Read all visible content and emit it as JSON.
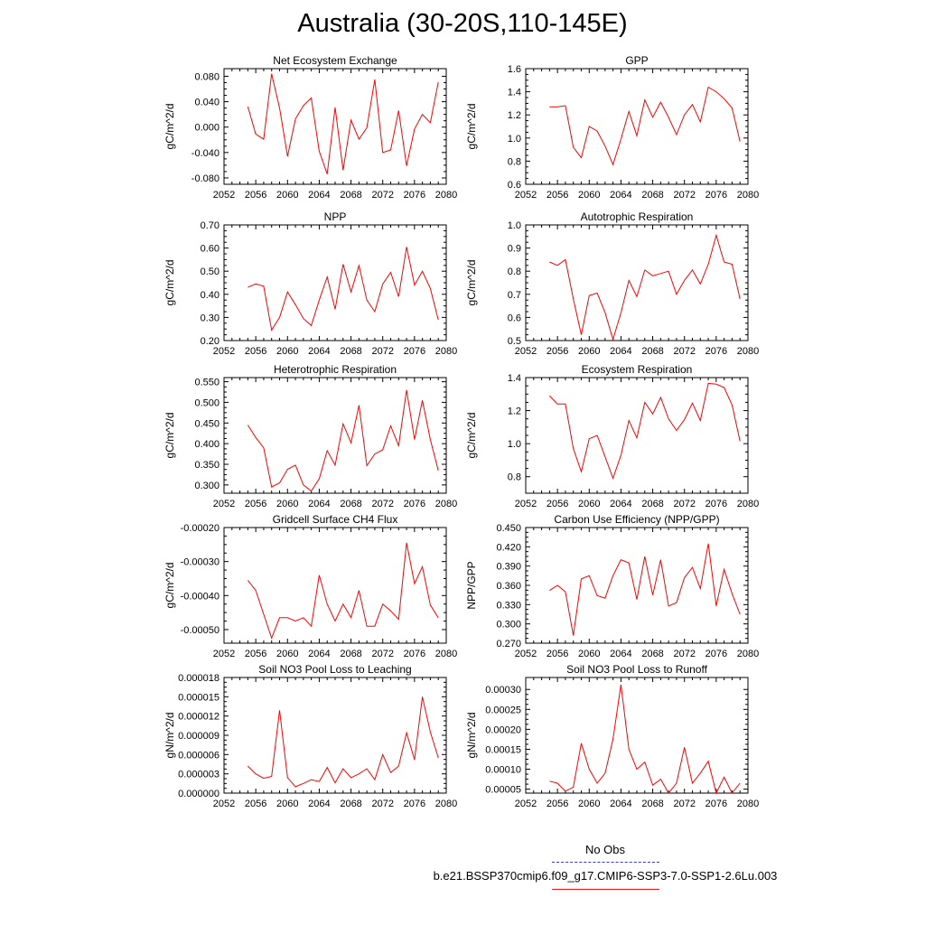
{
  "title": "Australia (30-20S,110-145E)",
  "colors": {
    "model": "#ff0000",
    "obs": "#3a3ad0",
    "axis": "#000000"
  },
  "legend": {
    "obs_label": "No Obs",
    "model_label": "b.e21.BSSP370cmip6.f09_g17.CMIP6-SSP3-7.0-SSP1-2.6Lu.003"
  },
  "chart_data": [
    {
      "type": "line",
      "title": "Net Ecosystem Exchange",
      "ylabel": "gC/m^2/d",
      "xlim": [
        2052,
        2080
      ],
      "xticks": [
        2052,
        2056,
        2060,
        2064,
        2068,
        2072,
        2076,
        2080
      ],
      "ylim": [
        -0.09,
        0.092
      ],
      "yticks": [
        -0.08,
        -0.04,
        0.0,
        0.04,
        0.08
      ],
      "ytick_labels": [
        "-0.080",
        "-0.040",
        "0.000",
        "0.040",
        "0.080"
      ],
      "x": [
        2055,
        2056,
        2057,
        2058,
        2059,
        2060,
        2061,
        2062,
        2063,
        2064,
        2065,
        2066,
        2067,
        2068,
        2069,
        2070,
        2071,
        2072,
        2073,
        2074,
        2075,
        2076,
        2077,
        2078,
        2079
      ],
      "series": [
        {
          "name": "b.e21.BSSP370cmip6.f09_g17.CMIP6-SSP3-7.0-SSP1-2.6Lu.003",
          "values": [
            0.032,
            -0.011,
            -0.019,
            0.084,
            0.03,
            -0.046,
            0.013,
            0.034,
            0.046,
            -0.038,
            -0.074,
            0.031,
            -0.068,
            0.011,
            -0.019,
            -0.001,
            0.075,
            -0.04,
            -0.036,
            0.026,
            -0.061,
            -0.003,
            0.02,
            0.007,
            0.071
          ]
        }
      ]
    },
    {
      "type": "line",
      "title": "GPP",
      "ylabel": "gC/m^2/d",
      "xlim": [
        2052,
        2080
      ],
      "xticks": [
        2052,
        2056,
        2060,
        2064,
        2068,
        2072,
        2076,
        2080
      ],
      "ylim": [
        0.6,
        1.6
      ],
      "yticks": [
        0.6,
        0.8,
        1.0,
        1.2,
        1.4,
        1.6
      ],
      "ytick_labels": [
        "0.6",
        "0.8",
        "1.0",
        "1.2",
        "1.4",
        "1.6"
      ],
      "x": [
        2055,
        2056,
        2057,
        2058,
        2059,
        2060,
        2061,
        2062,
        2063,
        2064,
        2065,
        2066,
        2067,
        2068,
        2069,
        2070,
        2071,
        2072,
        2073,
        2074,
        2075,
        2076,
        2077,
        2078,
        2079
      ],
      "series": [
        {
          "name": "b.e21.BSSP370cmip6.f09_g17.CMIP6-SSP3-7.0-SSP1-2.6Lu.003",
          "values": [
            1.27,
            1.27,
            1.28,
            0.92,
            0.83,
            1.1,
            1.06,
            0.93,
            0.77,
            0.99,
            1.23,
            1.02,
            1.33,
            1.18,
            1.31,
            1.18,
            1.03,
            1.2,
            1.29,
            1.14,
            1.44,
            1.4,
            1.34,
            1.26,
            0.97
          ]
        }
      ]
    },
    {
      "type": "line",
      "title": "NPP",
      "ylabel": "gC/m^2/d",
      "xlim": [
        2052,
        2080
      ],
      "xticks": [
        2052,
        2056,
        2060,
        2064,
        2068,
        2072,
        2076,
        2080
      ],
      "ylim": [
        0.2,
        0.7
      ],
      "yticks": [
        0.2,
        0.3,
        0.4,
        0.5,
        0.6,
        0.7
      ],
      "ytick_labels": [
        "0.20",
        "0.30",
        "0.40",
        "0.50",
        "0.60",
        "0.70"
      ],
      "x": [
        2055,
        2056,
        2057,
        2058,
        2059,
        2060,
        2061,
        2062,
        2063,
        2064,
        2065,
        2066,
        2067,
        2068,
        2069,
        2070,
        2071,
        2072,
        2073,
        2074,
        2075,
        2076,
        2077,
        2078,
        2079
      ],
      "series": [
        {
          "name": "b.e21.BSSP370cmip6.f09_g17.CMIP6-SSP3-7.0-SSP1-2.6Lu.003",
          "values": [
            0.43,
            0.445,
            0.435,
            0.245,
            0.3,
            0.41,
            0.355,
            0.295,
            0.265,
            0.375,
            0.475,
            0.335,
            0.53,
            0.41,
            0.525,
            0.375,
            0.325,
            0.445,
            0.495,
            0.39,
            0.605,
            0.44,
            0.5,
            0.425,
            0.29
          ]
        }
      ]
    },
    {
      "type": "line",
      "title": "Autotrophic Respiration",
      "ylabel": "gC/m^2/d",
      "xlim": [
        2052,
        2080
      ],
      "xticks": [
        2052,
        2056,
        2060,
        2064,
        2068,
        2072,
        2076,
        2080
      ],
      "ylim": [
        0.5,
        1.0
      ],
      "yticks": [
        0.5,
        0.6,
        0.7,
        0.8,
        0.9,
        1.0
      ],
      "ytick_labels": [
        "0.5",
        "0.6",
        "0.7",
        "0.8",
        "0.9",
        "1.0"
      ],
      "x": [
        2055,
        2056,
        2057,
        2058,
        2059,
        2060,
        2061,
        2062,
        2063,
        2064,
        2065,
        2066,
        2067,
        2068,
        2069,
        2070,
        2071,
        2072,
        2073,
        2074,
        2075,
        2076,
        2077,
        2078,
        2079
      ],
      "series": [
        {
          "name": "b.e21.BSSP370cmip6.f09_g17.CMIP6-SSP3-7.0-SSP1-2.6Lu.003",
          "values": [
            0.84,
            0.825,
            0.85,
            0.68,
            0.525,
            0.695,
            0.705,
            0.62,
            0.505,
            0.62,
            0.76,
            0.69,
            0.805,
            0.78,
            0.79,
            0.8,
            0.7,
            0.76,
            0.805,
            0.745,
            0.83,
            0.955,
            0.84,
            0.83,
            0.68
          ]
        }
      ]
    },
    {
      "type": "line",
      "title": "Heterotrophic Respiration",
      "ylabel": "gC/m^2/d",
      "xlim": [
        2052,
        2080
      ],
      "xticks": [
        2052,
        2056,
        2060,
        2064,
        2068,
        2072,
        2076,
        2080
      ],
      "ylim": [
        0.28,
        0.56
      ],
      "yticks": [
        0.3,
        0.35,
        0.4,
        0.45,
        0.5,
        0.55
      ],
      "ytick_labels": [
        "0.300",
        "0.350",
        "0.400",
        "0.450",
        "0.500",
        "0.550"
      ],
      "x": [
        2055,
        2056,
        2057,
        2058,
        2059,
        2060,
        2061,
        2062,
        2063,
        2064,
        2065,
        2066,
        2067,
        2068,
        2069,
        2070,
        2071,
        2072,
        2073,
        2074,
        2075,
        2076,
        2077,
        2078,
        2079
      ],
      "series": [
        {
          "name": "b.e21.BSSP370cmip6.f09_g17.CMIP6-SSP3-7.0-SSP1-2.6Lu.003",
          "values": [
            0.445,
            0.415,
            0.39,
            0.295,
            0.305,
            0.338,
            0.348,
            0.3,
            0.285,
            0.315,
            0.383,
            0.348,
            0.448,
            0.402,
            0.493,
            0.347,
            0.375,
            0.385,
            0.443,
            0.395,
            0.53,
            0.41,
            0.505,
            0.41,
            0.335
          ]
        }
      ]
    },
    {
      "type": "line",
      "title": "Ecosystem Respiration",
      "ylabel": "gC/m^2/d",
      "xlim": [
        2052,
        2080
      ],
      "xticks": [
        2052,
        2056,
        2060,
        2064,
        2068,
        2072,
        2076,
        2080
      ],
      "ylim": [
        0.7,
        1.4
      ],
      "yticks": [
        0.8,
        1.0,
        1.2,
        1.4
      ],
      "ytick_labels": [
        "0.8",
        "1.0",
        "1.2",
        "1.4"
      ],
      "x": [
        2055,
        2056,
        2057,
        2058,
        2059,
        2060,
        2061,
        2062,
        2063,
        2064,
        2065,
        2066,
        2067,
        2068,
        2069,
        2070,
        2071,
        2072,
        2073,
        2074,
        2075,
        2076,
        2077,
        2078,
        2079
      ],
      "series": [
        {
          "name": "b.e21.BSSP370cmip6.f09_g17.CMIP6-SSP3-7.0-SSP1-2.6Lu.003",
          "values": [
            1.29,
            1.24,
            1.24,
            0.97,
            0.83,
            1.03,
            1.05,
            0.92,
            0.79,
            0.93,
            1.14,
            1.035,
            1.25,
            1.18,
            1.28,
            1.15,
            1.08,
            1.145,
            1.245,
            1.14,
            1.365,
            1.36,
            1.34,
            1.235,
            1.015
          ]
        }
      ]
    },
    {
      "type": "line",
      "title": "Gridcell Surface CH4 Flux",
      "ylabel": "gC/m^2/d",
      "xlim": [
        2052,
        2080
      ],
      "xticks": [
        2052,
        2056,
        2060,
        2064,
        2068,
        2072,
        2076,
        2080
      ],
      "ylim": [
        -0.00054,
        -0.0002
      ],
      "yticks": [
        -0.0005,
        -0.0004,
        -0.0003,
        -0.0002
      ],
      "ytick_labels": [
        "-0.00050",
        "-0.00040",
        "-0.00030",
        "-0.00020"
      ],
      "x": [
        2055,
        2056,
        2057,
        2058,
        2059,
        2060,
        2061,
        2062,
        2063,
        2064,
        2065,
        2066,
        2067,
        2068,
        2069,
        2070,
        2071,
        2072,
        2073,
        2074,
        2075,
        2076,
        2077,
        2078,
        2079
      ],
      "series": [
        {
          "name": "b.e21.BSSP370cmip6.f09_g17.CMIP6-SSP3-7.0-SSP1-2.6Lu.003",
          "values": [
            -0.000355,
            -0.000385,
            -0.000455,
            -0.000525,
            -0.000465,
            -0.000465,
            -0.000475,
            -0.000465,
            -0.00049,
            -0.00034,
            -0.000425,
            -0.000475,
            -0.000425,
            -0.000465,
            -0.000385,
            -0.00049,
            -0.00049,
            -0.000425,
            -0.000445,
            -0.00047,
            -0.000245,
            -0.000365,
            -0.000315,
            -0.000428,
            -0.000465
          ]
        }
      ]
    },
    {
      "type": "line",
      "title": "Carbon Use Efficiency (NPP/GPP)",
      "ylabel": "NPP/GPP",
      "xlim": [
        2052,
        2080
      ],
      "xticks": [
        2052,
        2056,
        2060,
        2064,
        2068,
        2072,
        2076,
        2080
      ],
      "ylim": [
        0.27,
        0.45
      ],
      "yticks": [
        0.27,
        0.3,
        0.33,
        0.36,
        0.39,
        0.42,
        0.45
      ],
      "ytick_labels": [
        "0.270",
        "0.300",
        "0.330",
        "0.360",
        "0.390",
        "0.420",
        "0.450"
      ],
      "x": [
        2055,
        2056,
        2057,
        2058,
        2059,
        2060,
        2061,
        2062,
        2063,
        2064,
        2065,
        2066,
        2067,
        2068,
        2069,
        2070,
        2071,
        2072,
        2073,
        2074,
        2075,
        2076,
        2077,
        2078,
        2079
      ],
      "series": [
        {
          "name": "b.e21.BSSP370cmip6.f09_g17.CMIP6-SSP3-7.0-SSP1-2.6Lu.003",
          "values": [
            0.352,
            0.36,
            0.35,
            0.282,
            0.37,
            0.375,
            0.344,
            0.34,
            0.375,
            0.4,
            0.395,
            0.338,
            0.405,
            0.345,
            0.4,
            0.328,
            0.333,
            0.372,
            0.388,
            0.355,
            0.425,
            0.328,
            0.385,
            0.347,
            0.315
          ]
        }
      ]
    },
    {
      "type": "line",
      "title": "Soil NO3 Pool Loss to Leaching",
      "ylabel": "gN/m^2/d",
      "xlim": [
        2052,
        2080
      ],
      "xticks": [
        2052,
        2056,
        2060,
        2064,
        2068,
        2072,
        2076,
        2080
      ],
      "ylim": [
        0.0,
        1.8e-05
      ],
      "yticks": [
        0.0,
        3e-06,
        6e-06,
        9e-06,
        1.2e-05,
        1.5e-05,
        1.8e-05
      ],
      "ytick_labels": [
        "0.000000",
        "0.000003",
        "0.000006",
        "0.000009",
        "0.000012",
        "0.000015",
        "0.000018"
      ],
      "x": [
        2055,
        2056,
        2057,
        2058,
        2059,
        2060,
        2061,
        2062,
        2063,
        2064,
        2065,
        2066,
        2067,
        2068,
        2069,
        2070,
        2071,
        2072,
        2073,
        2074,
        2075,
        2076,
        2077,
        2078,
        2079
      ],
      "series": [
        {
          "name": "b.e21.BSSP370cmip6.f09_g17.CMIP6-SSP3-7.0-SSP1-2.6Lu.003",
          "values": [
            4.2e-06,
            3e-06,
            2.3e-06,
            2.6e-06,
            1.29e-05,
            2.4e-06,
            1e-06,
            1.5e-06,
            2.1e-06,
            1.8e-06,
            4e-06,
            1.6e-06,
            3.8e-06,
            2.4e-06,
            3e-06,
            3.8e-06,
            2.1e-06,
            6e-06,
            3.2e-06,
            4.2e-06,
            9.4e-06,
            5.2e-06,
            1.5e-05,
            9.5e-06,
            5.5e-06
          ]
        }
      ]
    },
    {
      "type": "line",
      "title": "Soil NO3 Pool Loss to Runoff",
      "ylabel": "gN/m^2/d",
      "xlim": [
        2052,
        2080
      ],
      "xticks": [
        2052,
        2056,
        2060,
        2064,
        2068,
        2072,
        2076,
        2080
      ],
      "ylim": [
        4e-05,
        0.00033
      ],
      "yticks": [
        5e-05,
        0.0001,
        0.00015,
        0.0002,
        0.00025,
        0.0003
      ],
      "ytick_labels": [
        "0.00005",
        "0.00010",
        "0.00015",
        "0.00020",
        "0.00025",
        "0.00030"
      ],
      "x": [
        2055,
        2056,
        2057,
        2058,
        2059,
        2060,
        2061,
        2062,
        2063,
        2064,
        2065,
        2066,
        2067,
        2068,
        2069,
        2070,
        2071,
        2072,
        2073,
        2074,
        2075,
        2076,
        2077,
        2078,
        2079
      ],
      "series": [
        {
          "name": "b.e21.BSSP370cmip6.f09_g17.CMIP6-SSP3-7.0-SSP1-2.6Lu.003",
          "values": [
            7e-05,
            6.5e-05,
            4.5e-05,
            5.5e-05,
            0.000165,
            0.0001,
            6.5e-05,
            9e-05,
            0.000175,
            0.000312,
            0.00015,
            0.0001,
            0.000118,
            6e-05,
            7.5e-05,
            4e-05,
            6.5e-05,
            0.000155,
            6.5e-05,
            9e-05,
            0.00012,
            4e-05,
            8e-05,
            4e-05,
            6.5e-05
          ]
        }
      ]
    }
  ]
}
